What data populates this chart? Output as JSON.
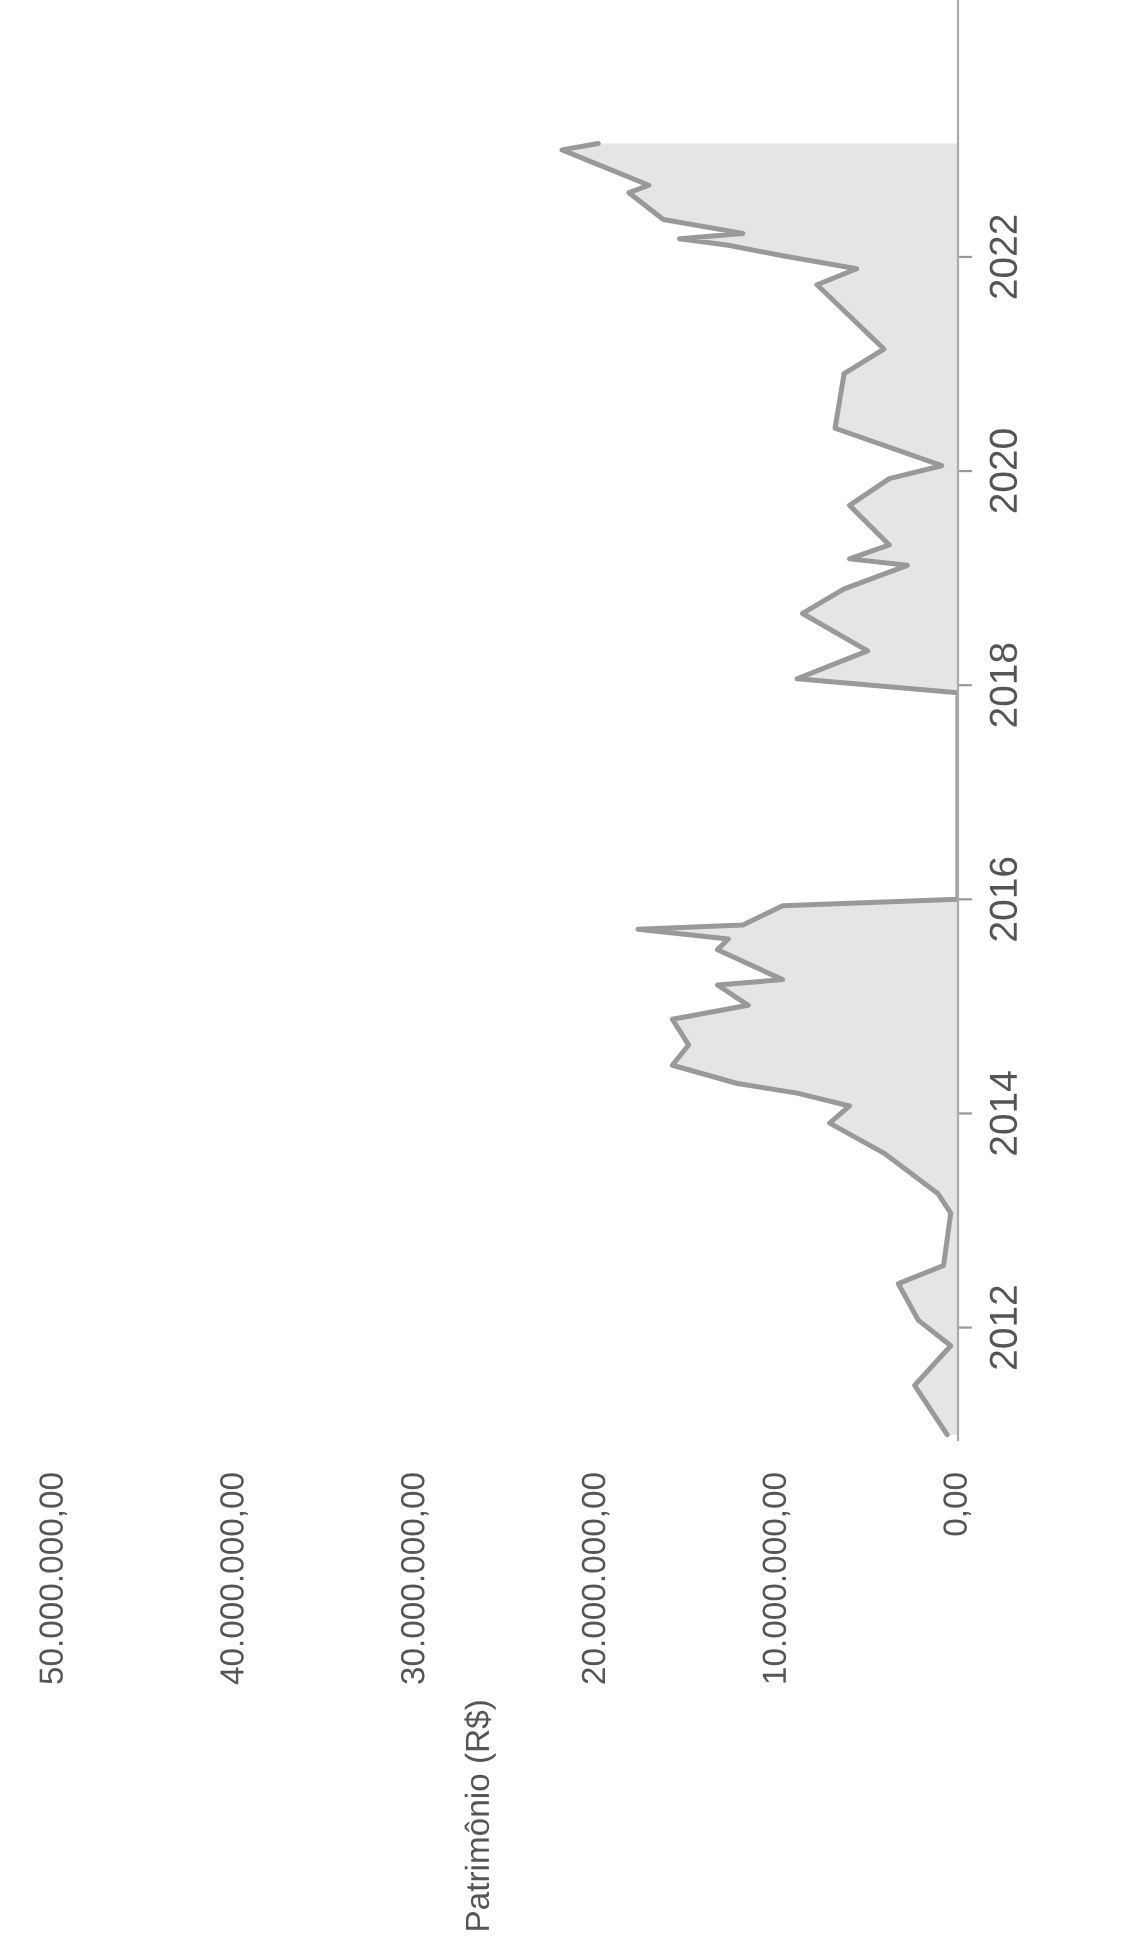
{
  "chart_data": {
    "type": "area",
    "ylabel": "Patrimônio (R$)",
    "x": [
      2011.0,
      2011.46,
      2011.83,
      2012.07,
      2012.41,
      2012.58,
      2013.07,
      2013.25,
      2013.63,
      2013.91,
      2014.07,
      2014.19,
      2014.28,
      2014.45,
      2014.64,
      2014.88,
      2015.01,
      2015.2,
      2015.25,
      2015.53,
      2015.63,
      2015.72,
      2015.76,
      2015.94,
      2016.0,
      2017.93,
      2018.06,
      2018.32,
      2018.67,
      2018.9,
      2019.12,
      2019.18,
      2019.31,
      2019.68,
      2019.93,
      2020.05,
      2020.4,
      2020.91,
      2021.14,
      2021.74,
      2021.89,
      2022.02,
      2022.11,
      2022.17,
      2022.22,
      2022.35,
      2022.6,
      2022.67,
      2023.0,
      2023.06
    ],
    "series": [
      {
        "color": "#999999",
        "values": [
          600000,
          2400000,
          400000,
          2200000,
          3300000,
          800000,
          400000,
          1100000,
          4100000,
          7100000,
          6000000,
          8900000,
          12200000,
          15800000,
          14900000,
          15800000,
          11600000,
          13300000,
          9700000,
          13300000,
          12700000,
          17700000,
          11900000,
          9700000,
          0,
          0,
          8900000,
          5000000,
          8600000,
          6300000,
          2800000,
          6000000,
          3800000,
          6000000,
          3800000,
          900000,
          6800000,
          6300000,
          4100000,
          7800000,
          5600000,
          10000000,
          12700000,
          15400000,
          11900000,
          16300000,
          18200000,
          17100000,
          21900000,
          19900000
        ]
      }
    ],
    "orientation": "horizontal",
    "ylim": [
      2010.95,
      2024.4
    ],
    "yticks": [
      2012,
      2014,
      2016,
      2018,
      2020,
      2022
    ],
    "xlim": [
      50000000,
      0
    ],
    "xticks": [
      {
        "value": 0,
        "label": "0,00"
      },
      {
        "value": 10000000,
        "label": "10.000.000,00"
      },
      {
        "value": 20000000,
        "label": "20.000.000,00"
      },
      {
        "value": 30000000,
        "label": "30.000.000,00"
      },
      {
        "value": 40000000,
        "label": "40.000.000,00"
      },
      {
        "value": 50000000,
        "label": "50.000.000,00"
      }
    ],
    "grid": false,
    "legend": false
  }
}
